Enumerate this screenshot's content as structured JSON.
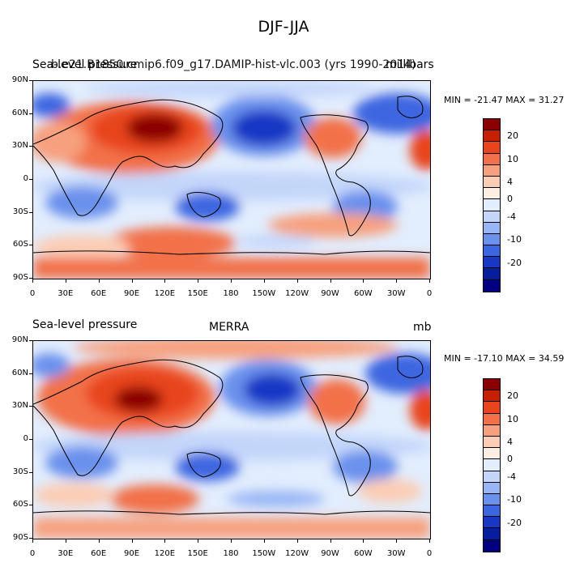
{
  "title": "DJF-JJA",
  "panels": [
    {
      "left_label": "Sea-level pressure",
      "center_label": "b.e21.B1850.cmip6.f09_g17.DAMIP-hist-vlc.003 (yrs 1990-2014)",
      "right_label": "millibars",
      "minmax": "MIN = -21.47 MAX =  31.27"
    },
    {
      "left_label": "Sea-level pressure",
      "center_label": "MERRA",
      "right_label": "mb",
      "minmax": "MIN = -17.10 MAX =  34.59"
    }
  ],
  "lat_labels": [
    "90N",
    "60N",
    "30N",
    "0",
    "30S",
    "60S",
    "90S"
  ],
  "lon_labels": [
    "0",
    "30E",
    "60E",
    "90E",
    "120E",
    "150E",
    "180",
    "150W",
    "120W",
    "90W",
    "60W",
    "30W",
    "0"
  ],
  "colorbar": {
    "labels": [
      "20",
      "10",
      "4",
      "0",
      "-4",
      "-10",
      "-20"
    ],
    "colors": [
      "#8b0000",
      "#c62000",
      "#e8451e",
      "#f2714a",
      "#f7a07e",
      "#fbcdb5",
      "#fdeee4",
      "#e2edfd",
      "#c3d6fa",
      "#98b6f4",
      "#6a91ec",
      "#3c66e0",
      "#1838c4",
      "#061e9b",
      "#000080"
    ]
  }
}
